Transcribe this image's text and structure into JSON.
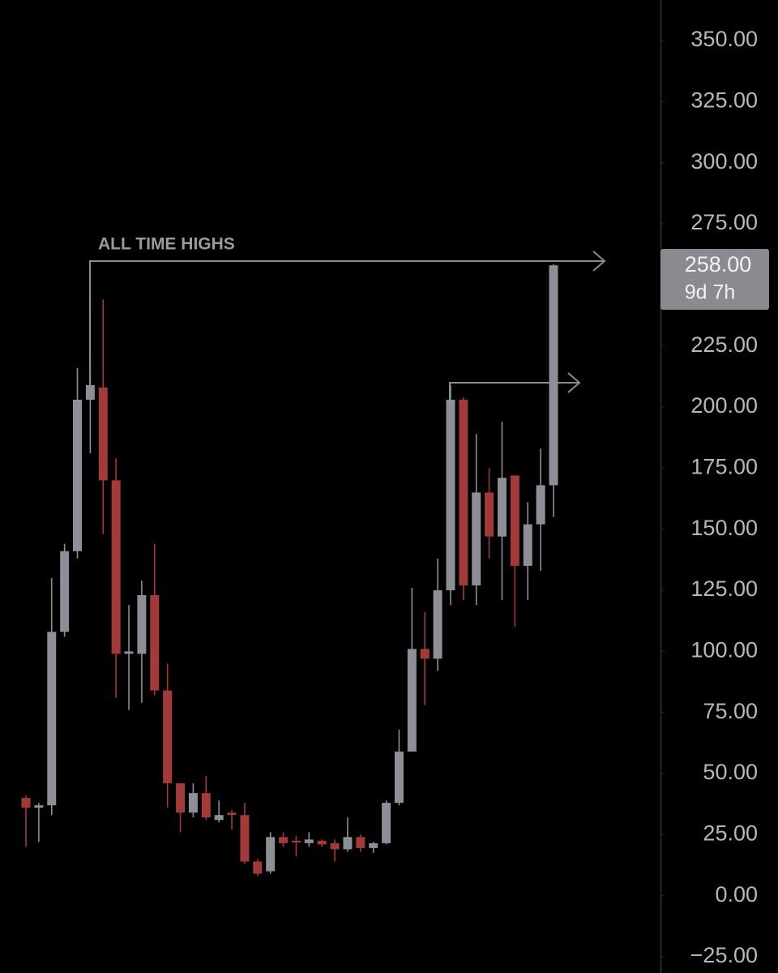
{
  "chart_data": {
    "type": "candlestick",
    "annotation": "ALL TIME HIGHS",
    "price_label": "258.00",
    "countdown": "9d 7h",
    "up_color": "#8e8e96",
    "down_color": "#a33a3a",
    "ylim": [
      -25,
      350
    ],
    "yticks": [
      {
        "value": 350,
        "label": "350.00"
      },
      {
        "value": 325,
        "label": "325.00"
      },
      {
        "value": 300,
        "label": "300.00"
      },
      {
        "value": 275,
        "label": "275.00"
      },
      {
        "value": 225,
        "label": "225.00"
      },
      {
        "value": 200,
        "label": "200.00"
      },
      {
        "value": 175,
        "label": "175.00"
      },
      {
        "value": 150,
        "label": "150.00"
      },
      {
        "value": 125,
        "label": "125.00"
      },
      {
        "value": 100,
        "label": "100.00"
      },
      {
        "value": 75,
        "label": "75.00"
      },
      {
        "value": 50,
        "label": "50.00"
      },
      {
        "value": 25,
        "label": "25.00"
      },
      {
        "value": 0,
        "label": "0.00"
      },
      {
        "value": -25,
        "label": "−25.00"
      }
    ],
    "open": [
      40,
      36,
      37,
      108,
      141,
      203,
      208,
      170,
      99,
      99,
      123,
      84,
      46,
      34,
      42,
      31,
      34,
      33,
      14,
      10,
      24,
      22.5,
      21.5,
      22.5,
      21.5,
      19,
      24,
      19.5,
      21.5,
      38,
      59,
      101,
      97,
      125,
      203,
      127,
      165,
      147,
      172,
      135,
      152,
      168
    ],
    "high": [
      41,
      38,
      130,
      144,
      216,
      219,
      244,
      179,
      119,
      129,
      144,
      95,
      46,
      46,
      49,
      39,
      35,
      38,
      15,
      26,
      26,
      24.5,
      26,
      23,
      23,
      32,
      25,
      22,
      39,
      68,
      126,
      116,
      138,
      209,
      204,
      189,
      175,
      194,
      172,
      161,
      183,
      258.5
    ],
    "low": [
      20,
      22,
      33,
      106,
      138,
      181,
      148,
      81,
      76,
      79,
      82,
      36,
      26,
      32,
      31,
      30,
      27,
      13,
      8,
      9,
      20,
      16,
      20,
      20,
      14,
      18,
      18,
      17.5,
      21,
      37,
      59,
      78,
      92,
      119,
      121,
      119,
      138,
      121,
      110,
      121,
      133,
      155
    ],
    "close": [
      36,
      37,
      108,
      141,
      203,
      209,
      170,
      99,
      100,
      123,
      84,
      46,
      34,
      42,
      32,
      33,
      33,
      14,
      9,
      24,
      21.5,
      22,
      23,
      21,
      19,
      24,
      19.5,
      21.5,
      38,
      59,
      101,
      97,
      125,
      203,
      127,
      165,
      147,
      171,
      135,
      152,
      168,
      258
    ]
  }
}
